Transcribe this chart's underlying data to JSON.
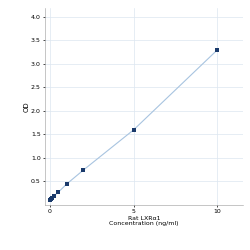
{
  "x_data": [
    0.0,
    0.0625,
    0.125,
    0.25,
    0.5,
    1.0,
    2.0,
    5.0,
    10.0
  ],
  "y_data": [
    0.106,
    0.132,
    0.155,
    0.198,
    0.274,
    0.448,
    0.745,
    1.6,
    3.3
  ],
  "line_color": "#a8c4e0",
  "marker_color": "#1a3a6b",
  "marker_size": 3.5,
  "xlabel_line1": "Rat LXRα1",
  "xlabel_line2": "Concentration (ng/ml)",
  "ylabel": "OD",
  "xlim": [
    -0.3,
    11.5
  ],
  "ylim": [
    0,
    4.2
  ],
  "yticks": [
    0.5,
    1.0,
    1.5,
    2.0,
    2.5,
    3.0,
    3.5,
    4.0
  ],
  "xticks": [
    0,
    5,
    10
  ],
  "grid_color": "#dce6f0",
  "background_color": "#ffffff",
  "axis_fontsize": 4.5,
  "tick_fontsize": 4.5,
  "ylabel_fontsize": 5
}
